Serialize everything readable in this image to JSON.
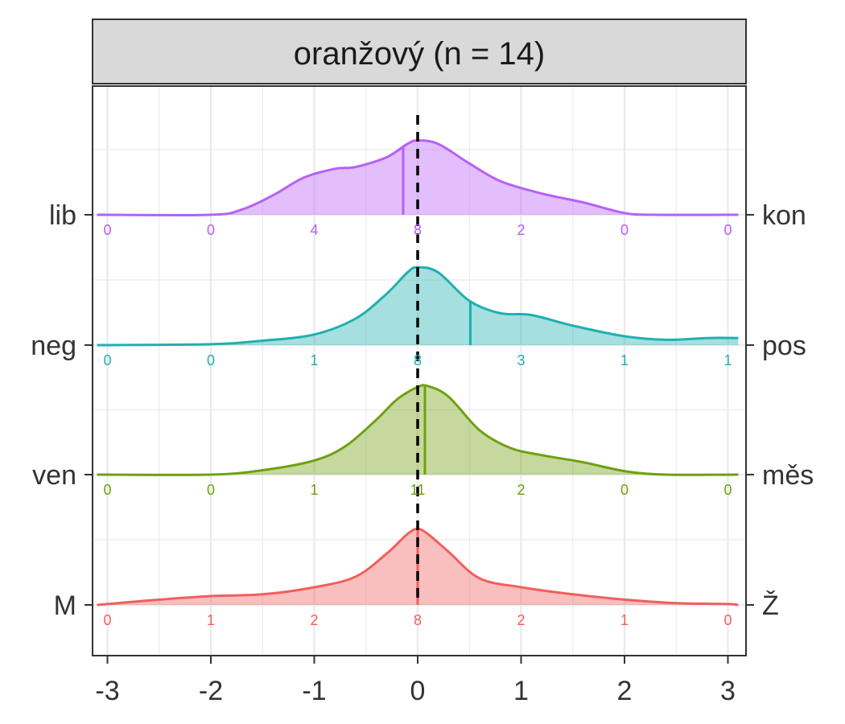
{
  "chart_data": {
    "type": "ridgeline-density",
    "facet_title": "oranžový (n = 14)",
    "xlim": [
      -3,
      3
    ],
    "x_ticks": [
      -3,
      -2,
      -1,
      0,
      1,
      2,
      3
    ],
    "x_tick_labels": [
      "-3",
      "-2",
      "-1",
      "0",
      "1",
      "2",
      "3"
    ],
    "reference_line_x": 0,
    "bin_centers": [
      -3,
      -2,
      -1,
      0,
      1,
      2,
      3
    ],
    "grid": true,
    "series": [
      {
        "left_label": "M",
        "right_label": "Ž",
        "color": "#F15F5D",
        "mean": 0.0,
        "counts": [
          0,
          1,
          2,
          8,
          2,
          1,
          0
        ],
        "count_labels": [
          "0",
          "1",
          "2",
          "8",
          "2",
          "1",
          "0"
        ],
        "density": [
          [
            -3.1,
            0.0
          ],
          [
            -3,
            0.01
          ],
          [
            -2.5,
            0.06
          ],
          [
            -2,
            0.1
          ],
          [
            -1.5,
            0.12
          ],
          [
            -1,
            0.2
          ],
          [
            -0.6,
            0.32
          ],
          [
            -0.3,
            0.58
          ],
          [
            -0.1,
            0.8
          ],
          [
            0,
            0.86
          ],
          [
            0.1,
            0.8
          ],
          [
            0.3,
            0.6
          ],
          [
            0.6,
            0.3
          ],
          [
            1,
            0.2
          ],
          [
            1.5,
            0.12
          ],
          [
            2,
            0.06
          ],
          [
            2.5,
            0.02
          ],
          [
            3,
            0.01
          ],
          [
            3.1,
            0.0
          ]
        ]
      },
      {
        "left_label": "ven",
        "right_label": "měs",
        "color": "#6FA00F",
        "mean": 0.07,
        "counts": [
          0,
          0,
          1,
          11,
          2,
          0,
          0
        ],
        "count_labels": [
          "0",
          "0",
          "1",
          "11",
          "2",
          "0",
          "0"
        ],
        "density": [
          [
            -3.1,
            0.0
          ],
          [
            -2,
            0.0
          ],
          [
            -1.5,
            0.05
          ],
          [
            -1,
            0.16
          ],
          [
            -0.7,
            0.32
          ],
          [
            -0.4,
            0.62
          ],
          [
            -0.2,
            0.85
          ],
          [
            0,
            0.99
          ],
          [
            0.1,
            1.0
          ],
          [
            0.3,
            0.88
          ],
          [
            0.6,
            0.5
          ],
          [
            0.9,
            0.3
          ],
          [
            1.2,
            0.22
          ],
          [
            1.6,
            0.14
          ],
          [
            2,
            0.04
          ],
          [
            2.4,
            0.0
          ],
          [
            3.1,
            0.0
          ]
        ]
      },
      {
        "left_label": "neg",
        "right_label": "pos",
        "color": "#1FB0B0",
        "mean": 0.51,
        "counts": [
          0,
          0,
          1,
          8,
          3,
          1,
          1
        ],
        "count_labels": [
          "0",
          "0",
          "1",
          "8",
          "3",
          "1",
          "1"
        ],
        "density": [
          [
            -3.1,
            0.0
          ],
          [
            -2,
            0.01
          ],
          [
            -1.5,
            0.05
          ],
          [
            -1,
            0.12
          ],
          [
            -0.6,
            0.3
          ],
          [
            -0.3,
            0.58
          ],
          [
            -0.1,
            0.82
          ],
          [
            0,
            0.88
          ],
          [
            0.2,
            0.82
          ],
          [
            0.5,
            0.5
          ],
          [
            0.8,
            0.36
          ],
          [
            1.1,
            0.34
          ],
          [
            1.5,
            0.22
          ],
          [
            2,
            0.1
          ],
          [
            2.4,
            0.06
          ],
          [
            2.8,
            0.08
          ],
          [
            3.1,
            0.08
          ]
        ]
      },
      {
        "left_label": "lib",
        "right_label": "kon",
        "color": "#B760F7",
        "mean": -0.14,
        "counts": [
          0,
          0,
          4,
          8,
          2,
          0,
          0
        ],
        "count_labels": [
          "0",
          "0",
          "4",
          "8",
          "2",
          "0",
          "0"
        ],
        "density": [
          [
            -3.1,
            0.0
          ],
          [
            -2,
            0.0
          ],
          [
            -1.7,
            0.06
          ],
          [
            -1.4,
            0.22
          ],
          [
            -1.1,
            0.42
          ],
          [
            -0.8,
            0.52
          ],
          [
            -0.6,
            0.54
          ],
          [
            -0.3,
            0.65
          ],
          [
            -0.1,
            0.8
          ],
          [
            0,
            0.84
          ],
          [
            0.2,
            0.8
          ],
          [
            0.5,
            0.58
          ],
          [
            0.8,
            0.38
          ],
          [
            1.2,
            0.24
          ],
          [
            1.6,
            0.14
          ],
          [
            2,
            0.02
          ],
          [
            2.3,
            0.0
          ],
          [
            3.1,
            0.0
          ]
        ]
      }
    ]
  }
}
